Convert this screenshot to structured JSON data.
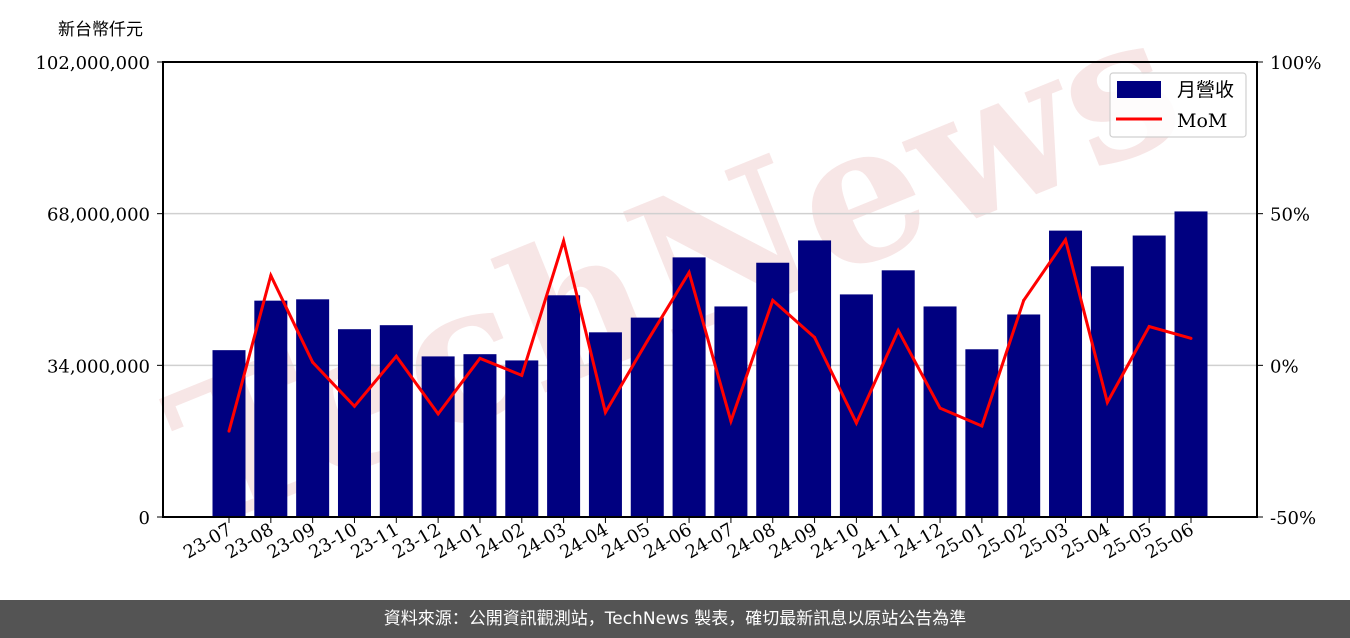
{
  "chart_data": {
    "type": "bar",
    "y_unit_label": "新台幣仟元",
    "categories": [
      "23-07",
      "23-08",
      "23-09",
      "23-10",
      "23-11",
      "23-12",
      "24-01",
      "24-02",
      "24-03",
      "24-04",
      "24-05",
      "24-06",
      "24-07",
      "24-08",
      "24-09",
      "24-10",
      "24-11",
      "24-12",
      "25-01",
      "25-02",
      "25-03",
      "25-04",
      "25-05",
      "25-06"
    ],
    "series": [
      {
        "name": "月營收",
        "type": "bar",
        "axis": "left",
        "color": "#000080",
        "values": [
          37400000,
          48500000,
          48800000,
          42100000,
          43000000,
          36000000,
          36500000,
          35100000,
          49700000,
          41400000,
          44700000,
          58200000,
          47200000,
          57000000,
          62000000,
          49900000,
          55300000,
          47200000,
          37600000,
          45400000,
          64200000,
          56200000,
          63100000,
          68500000
        ]
      },
      {
        "name": "MoM",
        "type": "line",
        "axis": "right",
        "color": "#ff0000",
        "values": [
          -21.7,
          29.6,
          1.0,
          -13.5,
          3.0,
          -16.0,
          2.3,
          -3.3,
          41.0,
          -15.5,
          8.0,
          30.6,
          -18.4,
          21.4,
          9.2,
          -19.0,
          11.5,
          -14.1,
          -20.0,
          21.4,
          41.4,
          -12.2,
          12.8,
          8.9
        ]
      }
    ],
    "left_axis": {
      "ylim": [
        0,
        102000000
      ],
      "ticks": [
        0,
        34000000,
        68000000,
        102000000
      ],
      "tick_labels": [
        "0",
        "34,000,000",
        "68,000,000",
        "102,000,000"
      ]
    },
    "right_axis": {
      "ylim": [
        -50,
        100
      ],
      "ticks": [
        -50,
        0,
        50,
        100
      ],
      "tick_labels": [
        "-50%",
        "0%",
        "50%",
        "100%"
      ]
    },
    "grid": "horizontal",
    "legend_placement": "top-right",
    "watermark": "TechNews"
  },
  "footer": {
    "source": "資料來源：公開資訊觀測站，TechNews 製表，確切最新訊息以原站公告為準"
  }
}
